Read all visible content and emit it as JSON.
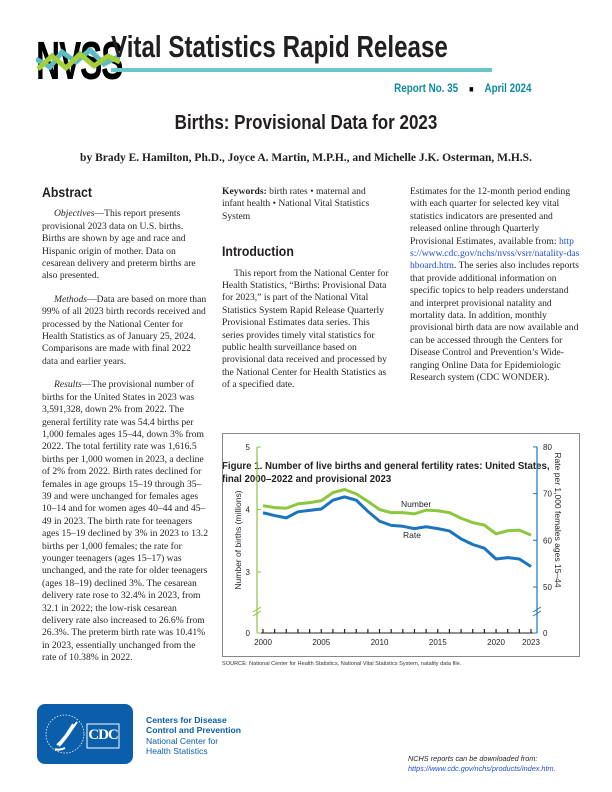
{
  "header": {
    "logo_text": "NVSS",
    "series_title": "Vital Statistics Rapid Release",
    "report_no": "Report No. 35",
    "separator": "■",
    "date": "April 2024"
  },
  "title": "Births: Provisional Data for 2023",
  "authors": "by Brady E. Hamilton, Ph.D., Joyce A. Martin, M.P.H., and Michelle J.K. Osterman, M.H.S.",
  "abstract": {
    "heading": "Abstract",
    "objectives_label": "Objectives",
    "objectives": "—This report presents provisional 2023 data on U.S. births. Births are shown by age and race and Hispanic origin of mother. Data on cesarean delivery and preterm births are also presented.",
    "methods_label": "Methods",
    "methods": "—Data are based on more than 99% of all 2023 birth records received and processed by the National Center for Health Statistics as of January 25, 2024. Comparisons are made with final 2022 data and earlier years.",
    "results_label": "Results",
    "results": "—The provisional number of births for the United States in 2023 was 3,591,328, down 2% from 2022. The general fertility rate was 54.4 births per 1,000 females ages 15–44, down 3% from 2022. The total fertility rate was 1,616.5 births per 1,000 women in 2023, a decline of 2% from 2022. Birth rates declined for females in age groups 15–19 through 35–39 and were unchanged for females ages 10–14 and for women ages 40–44 and 45–49 in 2023. The birth rate for teenagers ages 15–19 declined by 3% in 2023 to 13.2 births per 1,000 females; the rate for younger teenagers (ages 15–17) was unchanged, and the rate for older teenagers (ages 18–19) declined 3%. The cesarean delivery rate rose to 32.4% in 2023, from 32.1 in 2022; the low-risk cesarean delivery rate also increased to 26.6% from 26.3%. The preterm birth rate was 10.41% in 2023, essentially unchanged from the rate of 10.38% in 2022."
  },
  "keywords": {
    "label": "Keywords:",
    "text": " birth rates • maternal and infant health • National Vital Statistics System"
  },
  "introduction": {
    "heading": "Introduction",
    "p1": "This report from the National Center for Health Statistics, “Births: Provisional Data for 2023,” is part of the National Vital Statistics System Rapid Release Quarterly Provisional Estimates data series. This series provides timely vital statistics for public health surveillance based on provisional data received and processed by the National Center for Health Statistics as of a specified date.",
    "p2a": "Estimates for the 12-month period ending with each quarter for selected key vital statistics indicators are presented and released online through Quarterly Provisional Estimates, available from: ",
    "p2_link": "https://www.cdc.gov/nchs/nvss/vsrr/natality-dashboard.htm",
    "p2b": ". The series also includes reports that provide additional information on specific topics to help readers understand and interpret provisional natality and mortality data. In addition, monthly provisional birth data are now available and can be accessed through the Centers for Disease Control and Prevention’s Wide-ranging Online Data for Epidemiologic Research system (CDC WONDER)."
  },
  "figure": {
    "title": "Figure 1. Number of live births and general fertility rates: United States, final 2000–2022 and provisional 2023",
    "source": "SOURCE: National Center for Health Statistics, National Vital Statistics System, natality data file."
  },
  "chart_data": {
    "type": "line",
    "x": [
      2000,
      2001,
      2002,
      2003,
      2004,
      2005,
      2006,
      2007,
      2008,
      2009,
      2010,
      2011,
      2012,
      2013,
      2014,
      2015,
      2016,
      2017,
      2018,
      2019,
      2020,
      2021,
      2022,
      2023
    ],
    "x_ticks": [
      "2000",
      "2005",
      "2010",
      "2015",
      "2020",
      "2023"
    ],
    "ylabel": "Number of births (millions)",
    "ylabel_right": "Rate per 1,000 females ages 15–44",
    "y_ticks": [
      "0",
      "3",
      "4",
      "5"
    ],
    "y_ticks_right": [
      "0",
      "50",
      "60",
      "70",
      "80"
    ],
    "ylim": [
      0,
      5
    ],
    "ylim_right": [
      0,
      80
    ],
    "axis_break": true,
    "series": [
      {
        "name": "Number",
        "axis": "left",
        "color": "#8dc63f",
        "values": [
          4.06,
          4.03,
          4.02,
          4.09,
          4.11,
          4.14,
          4.27,
          4.32,
          4.25,
          4.13,
          4.0,
          3.95,
          3.95,
          3.93,
          3.99,
          3.98,
          3.95,
          3.86,
          3.79,
          3.75,
          3.61,
          3.66,
          3.67,
          3.59
        ]
      },
      {
        "name": "Rate",
        "axis": "right",
        "color": "#1b75bc",
        "values": [
          65.9,
          65.3,
          64.8,
          66.1,
          66.4,
          66.7,
          68.6,
          69.3,
          68.6,
          66.2,
          64.1,
          63.2,
          63.0,
          62.5,
          62.9,
          62.5,
          62.0,
          60.3,
          59.1,
          58.3,
          56.0,
          56.3,
          56.0,
          54.4
        ]
      }
    ]
  },
  "footer": {
    "org1": "Centers for Disease",
    "org2": "Control and Prevention",
    "org3": "National Center for",
    "org4": "Health Statistics",
    "cdc_logo": "CDC",
    "download_text": "NCHS reports can be downloaded from:",
    "download_link": "https://www.cdc.gov/nchs/products/index.htm."
  },
  "colors": {
    "teal": "#0e8a9c",
    "rule": "#6cc5c8",
    "green": "#a6ce39",
    "blue": "#0a5eaa"
  }
}
